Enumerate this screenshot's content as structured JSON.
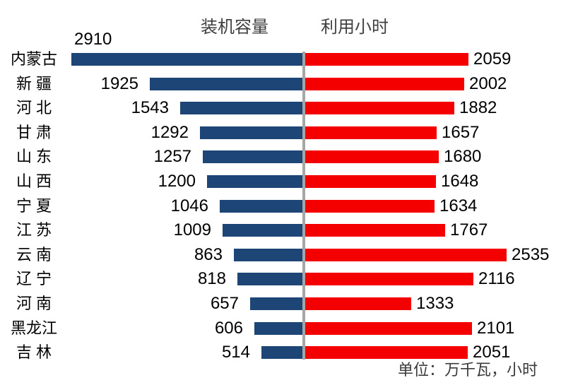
{
  "chart_data": {
    "type": "bar",
    "variant": "tornado-butterfly-horizontal",
    "title": "",
    "categories": [
      "内蒙古",
      "新 疆",
      "河 北",
      "甘 肃",
      "山 东",
      "山 西",
      "宁 夏",
      "江 苏",
      "云 南",
      "辽 宁",
      "河 南",
      "黑龙江",
      "吉 林"
    ],
    "series": [
      {
        "name": "装机容量",
        "side": "left",
        "color": "#1d4677",
        "values": [
          2910,
          1925,
          1543,
          1292,
          1257,
          1200,
          1046,
          1009,
          863,
          818,
          657,
          606,
          514
        ]
      },
      {
        "name": "利用小时",
        "side": "right",
        "color": "#f40000",
        "values": [
          2059,
          2002,
          1882,
          1657,
          1680,
          1648,
          1634,
          1767,
          2535,
          2116,
          1333,
          2101,
          2051
        ]
      }
    ],
    "note": "单位：万千瓦，小时",
    "legend_position": "top",
    "grid": false,
    "divider_color": "#a6a6a6",
    "label_color": "#000000",
    "legend_color": "#404040",
    "background": "#ffffff"
  }
}
